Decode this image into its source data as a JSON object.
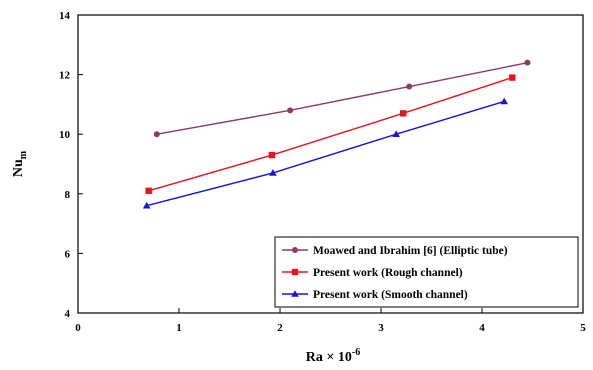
{
  "chart_data": {
    "type": "line",
    "xlabel": "Ra × 10",
    "xlabel_exp": "-6",
    "ylabel": "Nu",
    "ylabel_sub": "m",
    "xlim": [
      0,
      5
    ],
    "ylim": [
      4,
      14
    ],
    "xticks": [
      "0",
      "1",
      "2",
      "3",
      "4",
      "5"
    ],
    "yticks": [
      "4",
      "6",
      "8",
      "10",
      "12",
      "14"
    ],
    "grid": false,
    "legend_position": "bottom-right",
    "series": [
      {
        "name": "Moawed and Ibrahim [6] (Elliptic tube)",
        "color": "#8b3a6b",
        "marker": "circle",
        "x": [
          0.78,
          2.1,
          3.28,
          4.45
        ],
        "y": [
          10.0,
          10.8,
          11.6,
          12.4
        ]
      },
      {
        "name": "Present work (Rough channel)",
        "color": "#e8141c",
        "marker": "square",
        "x": [
          0.7,
          1.92,
          3.22,
          4.3
        ],
        "y": [
          8.1,
          9.3,
          10.7,
          11.9
        ]
      },
      {
        "name": "Present work (Smooth channel)",
        "color": "#1414e0",
        "marker": "triangle",
        "x": [
          0.68,
          1.93,
          3.15,
          4.22
        ],
        "y": [
          7.6,
          8.7,
          10.0,
          11.1
        ]
      }
    ]
  }
}
